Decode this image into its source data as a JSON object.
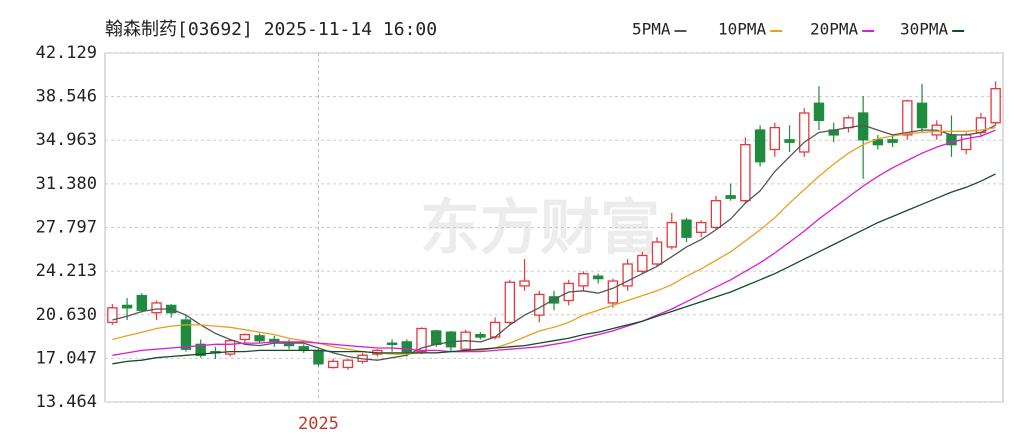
{
  "chart_data": {
    "type": "candlestick",
    "title": "翰森制药[03692] 2025-11-14 16:00",
    "watermark": "东方财富",
    "categories": [
      null,
      null,
      null,
      null,
      null,
      null,
      null,
      null,
      null,
      null,
      null,
      null,
      null,
      null,
      "2025",
      null,
      null,
      null,
      null,
      null,
      null,
      null,
      null,
      null,
      null,
      null,
      null,
      null,
      null,
      null,
      null,
      null,
      null,
      null,
      null,
      null,
      null,
      null,
      null,
      null,
      null,
      null,
      null,
      null,
      null,
      null,
      null,
      null,
      null,
      null,
      null,
      null,
      null,
      null,
      null,
      null,
      null,
      null,
      null,
      null,
      null
    ],
    "ylim": [
      13.464,
      42.129
    ],
    "yticks": [
      13.464,
      17.047,
      {
        "value": 20.63,
        "label": "20.630"
      },
      24.213,
      27.797,
      {
        "value": 31.38,
        "label": "31.380"
      },
      34.963,
      38.546,
      42.129
    ],
    "grid": true,
    "up_color": "#e8383d",
    "down_color": "#1e8b3e",
    "candles": {
      "open": [
        20.0,
        21.4,
        22.2,
        20.8,
        21.4,
        20.2,
        18.2,
        17.6,
        17.4,
        18.6,
        18.9,
        18.6,
        18.2,
        18.0,
        17.6,
        16.3,
        16.3,
        16.8,
        17.4,
        18.3,
        18.4,
        17.6,
        19.3,
        19.2,
        17.8,
        19.0,
        18.8,
        20.0,
        23.0,
        20.6,
        22.1,
        21.8,
        23.0,
        23.8,
        21.6,
        23.0,
        24.2,
        24.8,
        26.2,
        28.4,
        27.4,
        27.8,
        30.4,
        30.0,
        35.8,
        34.2,
        35.0,
        34.0,
        38.0,
        35.8,
        36.0,
        37.2,
        35.0,
        35.0,
        35.4,
        38.0,
        35.4,
        35.4,
        34.2,
        35.6,
        36.4
      ],
      "high": [
        21.5,
        22.0,
        22.4,
        21.8,
        21.5,
        20.6,
        18.6,
        18.0,
        18.6,
        19.1,
        19.1,
        18.9,
        18.6,
        18.2,
        17.8,
        17.0,
        17.0,
        17.5,
        17.8,
        18.6,
        18.6,
        19.6,
        19.4,
        19.3,
        19.4,
        19.2,
        20.4,
        23.5,
        25.2,
        22.6,
        22.6,
        23.5,
        24.2,
        24.0,
        23.6,
        25.2,
        25.8,
        27.0,
        29.0,
        28.6,
        28.4,
        30.4,
        31.4,
        35.2,
        36.2,
        36.4,
        36.2,
        37.6,
        39.4,
        36.4,
        37.0,
        38.6,
        35.4,
        35.3,
        38.3,
        39.6,
        36.6,
        37.0,
        35.6,
        37.2,
        39.8
      ],
      "low": [
        19.8,
        20.2,
        20.8,
        20.2,
        20.4,
        17.6,
        17.1,
        17.0,
        17.2,
        18.3,
        18.3,
        18.0,
        17.8,
        17.5,
        16.4,
        16.2,
        16.1,
        16.6,
        17.2,
        17.6,
        17.2,
        17.4,
        18.0,
        17.6,
        17.6,
        18.6,
        18.6,
        19.8,
        22.6,
        20.0,
        21.0,
        21.4,
        22.6,
        23.2,
        21.2,
        22.6,
        24.0,
        24.6,
        26.0,
        26.6,
        27.0,
        27.6,
        30.0,
        29.8,
        32.8,
        33.6,
        34.0,
        33.6,
        35.8,
        34.8,
        35.6,
        31.8,
        34.2,
        34.4,
        35.0,
        35.6,
        35.0,
        33.6,
        33.8,
        35.2,
        36.2
      ],
      "close": [
        21.2,
        21.2,
        21.0,
        21.6,
        20.8,
        17.8,
        17.3,
        17.5,
        18.5,
        19.0,
        18.5,
        18.4,
        18.1,
        17.8,
        16.6,
        16.8,
        16.9,
        17.3,
        17.7,
        18.2,
        17.6,
        19.5,
        18.2,
        18.0,
        19.2,
        18.8,
        20.0,
        23.3,
        23.4,
        22.3,
        21.6,
        23.2,
        24.0,
        23.6,
        23.4,
        24.8,
        25.5,
        26.6,
        28.2,
        27.0,
        28.2,
        30.0,
        30.2,
        34.6,
        33.2,
        36.0,
        34.8,
        37.2,
        36.6,
        35.4,
        36.8,
        35.0,
        34.6,
        34.8,
        38.2,
        36.0,
        36.2,
        34.6,
        35.4,
        36.8,
        39.2
      ]
    },
    "series": [
      {
        "name": "5PMA",
        "color": "#555555",
        "values": [
          20.2,
          20.5,
          20.9,
          21.1,
          21.1,
          20.6,
          19.8,
          19.1,
          18.6,
          18.2,
          18.1,
          18.3,
          18.3,
          18.3,
          17.9,
          17.5,
          17.2,
          17.0,
          16.9,
          17.1,
          17.3,
          17.9,
          18.2,
          18.4,
          18.5,
          18.4,
          18.8,
          19.8,
          20.6,
          21.2,
          21.9,
          22.5,
          22.6,
          22.4,
          22.8,
          23.4,
          24.0,
          24.6,
          25.4,
          26.2,
          26.8,
          27.6,
          28.5,
          29.8,
          30.8,
          32.4,
          33.6,
          34.8,
          35.6,
          35.8,
          36.0,
          36.2,
          35.8,
          35.4,
          35.6,
          35.8,
          35.8,
          35.4,
          35.4,
          35.6,
          36.2
        ]
      },
      {
        "name": "10PMA",
        "color": "#e8a020",
        "values": [
          18.6,
          18.9,
          19.2,
          19.5,
          19.7,
          19.8,
          19.8,
          19.7,
          19.6,
          19.4,
          19.2,
          19.0,
          18.7,
          18.5,
          18.3,
          18.0,
          17.8,
          17.6,
          17.5,
          17.4,
          17.4,
          17.5,
          17.5,
          17.6,
          17.6,
          17.7,
          17.9,
          18.3,
          18.8,
          19.3,
          19.6,
          20.0,
          20.6,
          21.0,
          21.4,
          21.8,
          22.2,
          22.6,
          23.1,
          23.8,
          24.4,
          25.1,
          25.8,
          26.7,
          27.6,
          28.6,
          29.8,
          30.9,
          32.0,
          33.0,
          33.9,
          34.6,
          35.1,
          35.3,
          35.5,
          35.6,
          35.7,
          35.7,
          35.7,
          35.8,
          36.0
        ]
      },
      {
        "name": "20PMA",
        "color": "#d81ed8",
        "values": [
          17.3,
          17.5,
          17.7,
          17.8,
          17.9,
          18.0,
          18.1,
          18.2,
          18.2,
          18.3,
          18.3,
          18.4,
          18.4,
          18.4,
          18.3,
          18.2,
          18.1,
          18.0,
          17.9,
          17.9,
          17.8,
          17.7,
          17.7,
          17.6,
          17.6,
          17.6,
          17.7,
          17.8,
          17.9,
          18.0,
          18.2,
          18.4,
          18.7,
          19.0,
          19.3,
          19.7,
          20.1,
          20.6,
          21.1,
          21.7,
          22.3,
          22.9,
          23.5,
          24.2,
          24.9,
          25.7,
          26.6,
          27.5,
          28.5,
          29.4,
          30.3,
          31.2,
          32.0,
          32.7,
          33.3,
          33.9,
          34.4,
          34.8,
          35.1,
          35.3,
          35.8
        ]
      },
      {
        "name": "30PMA",
        "color": "#124d2a",
        "values": [
          16.6,
          16.8,
          16.9,
          17.1,
          17.2,
          17.3,
          17.4,
          17.5,
          17.6,
          17.6,
          17.7,
          17.7,
          17.7,
          17.7,
          17.7,
          17.6,
          17.6,
          17.6,
          17.5,
          17.5,
          17.5,
          17.5,
          17.5,
          17.6,
          17.7,
          17.8,
          17.9,
          18.0,
          18.1,
          18.3,
          18.5,
          18.7,
          19.0,
          19.2,
          19.5,
          19.8,
          20.1,
          20.5,
          20.9,
          21.3,
          21.7,
          22.1,
          22.5,
          23.0,
          23.5,
          24.0,
          24.6,
          25.2,
          25.8,
          26.4,
          27.0,
          27.6,
          28.2,
          28.7,
          29.2,
          29.7,
          30.2,
          30.7,
          31.1,
          31.6,
          32.2
        ]
      }
    ]
  }
}
